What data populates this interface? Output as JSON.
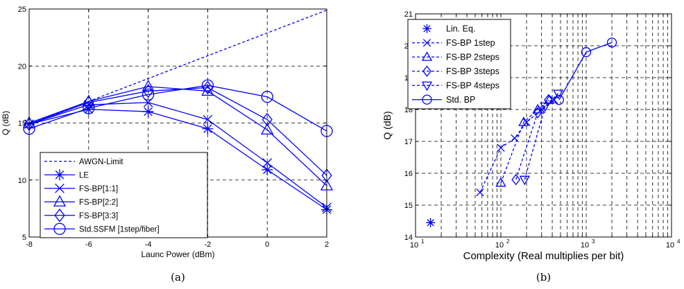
{
  "chart_data": [
    {
      "type": "line",
      "caption": "(a)",
      "xlabel": "Launc Power (dBm)",
      "ylabel": "Q (dB)",
      "xlim": [
        -8,
        2
      ],
      "ylim": [
        5,
        25
      ],
      "xticks": [
        -8,
        -6,
        -4,
        -2,
        0,
        2
      ],
      "yticks": [
        5,
        10,
        15,
        20,
        25
      ],
      "grid": true,
      "legend_position": "bottom-left",
      "series": [
        {
          "name": "AWGN-Limit",
          "marker": "none",
          "dashed": true,
          "x": [
            -8,
            2
          ],
          "y": [
            14.9,
            24.9
          ]
        },
        {
          "name": "LE",
          "marker": "asterisk",
          "x": [
            -8,
            -6,
            -4,
            -2,
            0,
            2
          ],
          "y": [
            14.9,
            16.2,
            16.0,
            14.5,
            10.9,
            7.4
          ]
        },
        {
          "name": "FS-BP[1:1]",
          "marker": "x",
          "x": [
            -8,
            -6,
            -4,
            -2,
            0,
            2
          ],
          "y": [
            14.9,
            16.6,
            16.8,
            15.3,
            11.5,
            7.6
          ]
        },
        {
          "name": "FS-BP[2:2]",
          "marker": "triangle",
          "x": [
            -8,
            -6,
            -4,
            -2,
            0,
            2
          ],
          "y": [
            15.0,
            16.9,
            18.2,
            17.8,
            14.4,
            9.5
          ]
        },
        {
          "name": "FS-BP[3:3]",
          "marker": "diamond",
          "x": [
            -8,
            -6,
            -4,
            -2,
            0,
            2
          ],
          "y": [
            14.9,
            16.8,
            17.8,
            18.1,
            15.3,
            10.4
          ]
        },
        {
          "name": "Std.SSFM [1step/fiber]",
          "marker": "circle",
          "x": [
            -8,
            -6,
            -4,
            -2,
            0,
            2
          ],
          "y": [
            14.5,
            16.3,
            17.5,
            18.3,
            17.3,
            14.3
          ]
        }
      ]
    },
    {
      "type": "line",
      "caption": "(b)",
      "xlabel": "Complexity (Real multiplies per bit)",
      "ylabel": "Q (dB)",
      "xscale": "log",
      "xlim": [
        10,
        10000
      ],
      "ylim": [
        14,
        21
      ],
      "xticks": [
        10,
        100,
        1000,
        10000
      ],
      "xtick_labels": [
        [
          "10",
          "1"
        ],
        [
          "10",
          "2"
        ],
        [
          "10",
          "3"
        ],
        [
          "10",
          "4"
        ]
      ],
      "yticks": [
        14,
        15,
        16,
        17,
        18,
        19,
        20,
        21
      ],
      "grid": true,
      "legend_position": "top-left",
      "series": [
        {
          "name": "Lin. Eq.",
          "marker": "asterisk",
          "dashed": false,
          "lines": false,
          "x": [
            15
          ],
          "y": [
            14.45
          ]
        },
        {
          "name": "FS-BP 1step",
          "marker": "x",
          "dashed": true,
          "x": [
            57,
            100,
            145,
            200,
            300,
            420
          ],
          "y": [
            15.4,
            16.8,
            17.1,
            17.6,
            18.0,
            18.3
          ]
        },
        {
          "name": "FS-BP 2steps",
          "marker": "triangle",
          "dashed": true,
          "x": [
            100,
            185,
            270,
            370
          ],
          "y": [
            15.7,
            17.6,
            18.0,
            18.3
          ]
        },
        {
          "name": "FS-BP 3steps",
          "marker": "diamond",
          "dashed": true,
          "x": [
            150,
            270,
            360
          ],
          "y": [
            15.8,
            17.9,
            18.3
          ]
        },
        {
          "name": "FS-BP 4steps",
          "marker": "triangle-down",
          "dashed": true,
          "x": [
            190,
            330,
            470
          ],
          "y": [
            15.8,
            18.1,
            18.5
          ]
        },
        {
          "name": "Std. BP",
          "marker": "circle",
          "dashed": false,
          "x": [
            480,
            1000,
            2000
          ],
          "y": [
            18.3,
            19.8,
            20.1
          ]
        }
      ]
    }
  ],
  "colors": {
    "series": "#0000ff",
    "axis": "#000000",
    "grid": "#000000"
  }
}
